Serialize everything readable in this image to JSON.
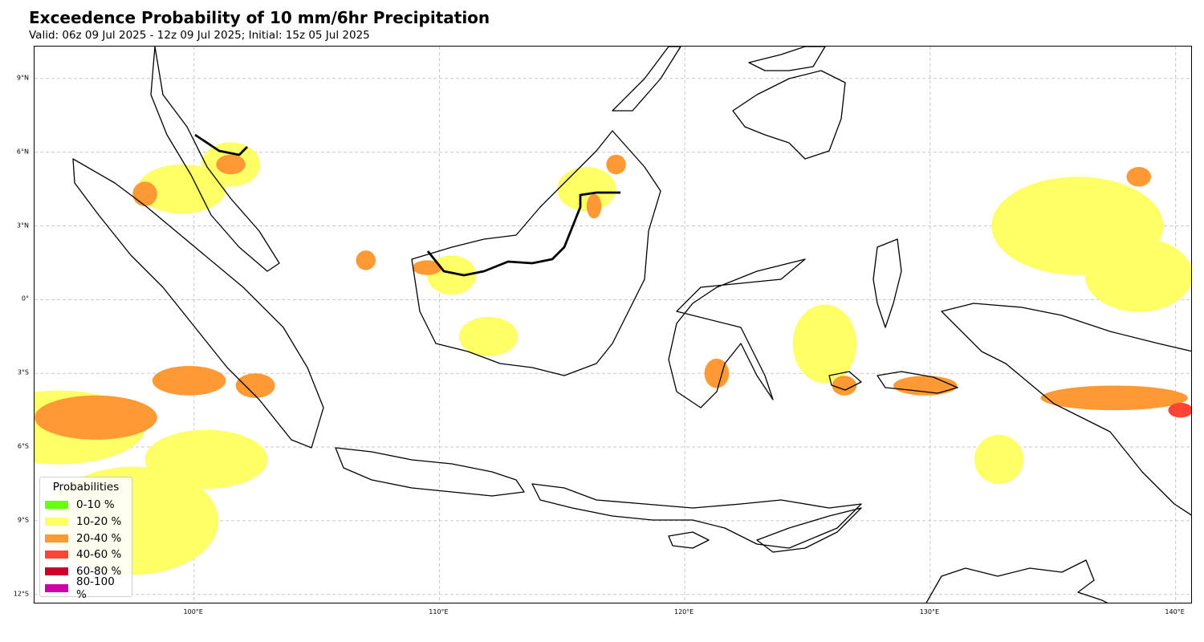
{
  "header": {
    "title": "Exceedence Probability of 10 mm/6hr Precipitation",
    "subtitle": "Valid: 06z 09 Jul 2025 - 12z 09 Jul 2025; Initial: 15z 05 Jul 2025"
  },
  "map": {
    "extent": {
      "lon_min": 93.5,
      "lon_max": 140.7,
      "lat_min": -12.4,
      "lat_max": 10.3
    },
    "grid": true,
    "lat_ticks": [
      {
        "value": 9,
        "label": "9°N"
      },
      {
        "value": 6,
        "label": "6°N"
      },
      {
        "value": 3,
        "label": "3°N"
      },
      {
        "value": 0,
        "label": "0°"
      },
      {
        "value": -3,
        "label": "3°S"
      },
      {
        "value": -6,
        "label": "6°S"
      },
      {
        "value": -9,
        "label": "9°S"
      },
      {
        "value": -12,
        "label": "12°S"
      }
    ],
    "lon_ticks": [
      {
        "value": 100,
        "label": "100°E"
      },
      {
        "value": 110,
        "label": "110°E"
      },
      {
        "value": 120,
        "label": "120°E"
      },
      {
        "value": 130,
        "label": "130°E"
      },
      {
        "value": 140,
        "label": "140°E"
      }
    ],
    "fields": [
      {
        "cls": 1,
        "lon": 94.5,
        "lat": -5.2,
        "rlon": 3.5,
        "rlat": 1.5
      },
      {
        "cls": 1,
        "lon": 97.5,
        "lat": -9.0,
        "rlon": 3.5,
        "rlat": 2.2
      },
      {
        "cls": 1,
        "lon": 100.5,
        "lat": -6.5,
        "rlon": 2.5,
        "rlat": 1.2
      },
      {
        "cls": 1,
        "lon": 99.5,
        "lat": 4.5,
        "rlon": 1.8,
        "rlat": 1.0
      },
      {
        "cls": 1,
        "lon": 101.5,
        "lat": 5.5,
        "rlon": 1.2,
        "rlat": 0.9
      },
      {
        "cls": 1,
        "lon": 112.0,
        "lat": -1.5,
        "rlon": 1.2,
        "rlat": 0.8
      },
      {
        "cls": 1,
        "lon": 125.7,
        "lat": -1.8,
        "rlon": 1.3,
        "rlat": 1.6
      },
      {
        "cls": 1,
        "lon": 136.0,
        "lat": 3.0,
        "rlon": 3.5,
        "rlat": 2.0
      },
      {
        "cls": 1,
        "lon": 138.5,
        "lat": 1.0,
        "rlon": 2.2,
        "rlat": 1.5
      },
      {
        "cls": 1,
        "lon": 132.8,
        "lat": -6.5,
        "rlon": 1.0,
        "rlat": 1.0
      },
      {
        "cls": 1,
        "lon": 116.0,
        "lat": 4.5,
        "rlon": 1.2,
        "rlat": 0.9
      },
      {
        "cls": 1,
        "lon": 110.5,
        "lat": 1.0,
        "rlon": 1.0,
        "rlat": 0.8
      },
      {
        "cls": 2,
        "lon": 96.0,
        "lat": -4.8,
        "rlon": 2.5,
        "rlat": 0.9
      },
      {
        "cls": 2,
        "lon": 99.8,
        "lat": -3.3,
        "rlon": 1.5,
        "rlat": 0.6
      },
      {
        "cls": 2,
        "lon": 102.5,
        "lat": -3.5,
        "rlon": 0.8,
        "rlat": 0.5
      },
      {
        "cls": 2,
        "lon": 98.0,
        "lat": 4.3,
        "rlon": 0.5,
        "rlat": 0.5
      },
      {
        "cls": 2,
        "lon": 101.5,
        "lat": 5.5,
        "rlon": 0.6,
        "rlat": 0.4
      },
      {
        "cls": 2,
        "lon": 107.0,
        "lat": 1.6,
        "rlon": 0.4,
        "rlat": 0.4
      },
      {
        "cls": 2,
        "lon": 109.5,
        "lat": 1.3,
        "rlon": 0.6,
        "rlat": 0.3
      },
      {
        "cls": 2,
        "lon": 117.2,
        "lat": 5.5,
        "rlon": 0.4,
        "rlat": 0.4
      },
      {
        "cls": 2,
        "lon": 116.3,
        "lat": 3.8,
        "rlon": 0.3,
        "rlat": 0.5
      },
      {
        "cls": 2,
        "lon": 121.3,
        "lat": -3.0,
        "rlon": 0.5,
        "rlat": 0.6
      },
      {
        "cls": 2,
        "lon": 126.5,
        "lat": -3.5,
        "rlon": 0.5,
        "rlat": 0.4
      },
      {
        "cls": 2,
        "lon": 129.8,
        "lat": -3.5,
        "rlon": 1.3,
        "rlat": 0.4
      },
      {
        "cls": 2,
        "lon": 137.5,
        "lat": -4.0,
        "rlon": 3.0,
        "rlat": 0.5
      },
      {
        "cls": 2,
        "lon": 138.5,
        "lat": 5.0,
        "rlon": 0.5,
        "rlat": 0.4
      },
      {
        "cls": 3,
        "lon": 140.2,
        "lat": -4.5,
        "rlon": 0.5,
        "rlat": 0.3
      }
    ],
    "legend": {
      "title": "Probabilities",
      "items": [
        {
          "label": "0-10 %",
          "color": "#66ff10"
        },
        {
          "label": "10-20 %",
          "color": "#ffff66"
        },
        {
          "label": "20-40 %",
          "color": "#ff9933"
        },
        {
          "label": "40-60 %",
          "color": "#ff4433"
        },
        {
          "label": "60-80 %",
          "color": "#c8002b"
        },
        {
          "label": "80-100 %",
          "color": "#cc00a5"
        }
      ]
    }
  }
}
